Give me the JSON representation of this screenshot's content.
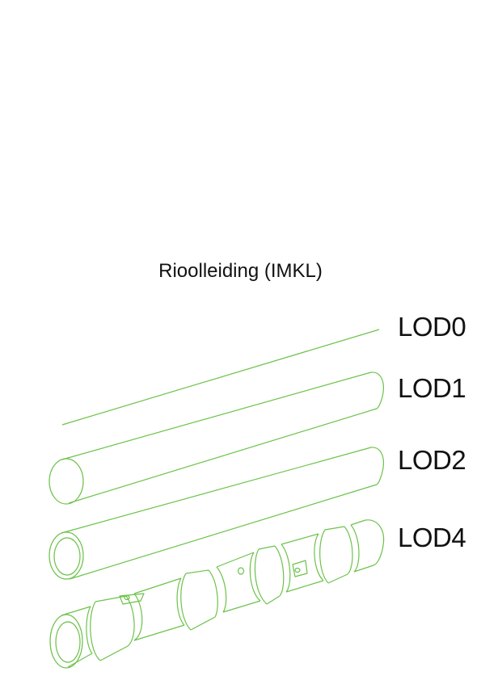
{
  "title": "Rioolleiding (IMKL)",
  "levels": [
    {
      "label": "LOD0"
    },
    {
      "label": "LOD1"
    },
    {
      "label": "LOD2"
    },
    {
      "label": "LOD4"
    }
  ],
  "colors": {
    "line": "#6cc24a",
    "text": "#111111",
    "background": "#ffffff"
  }
}
